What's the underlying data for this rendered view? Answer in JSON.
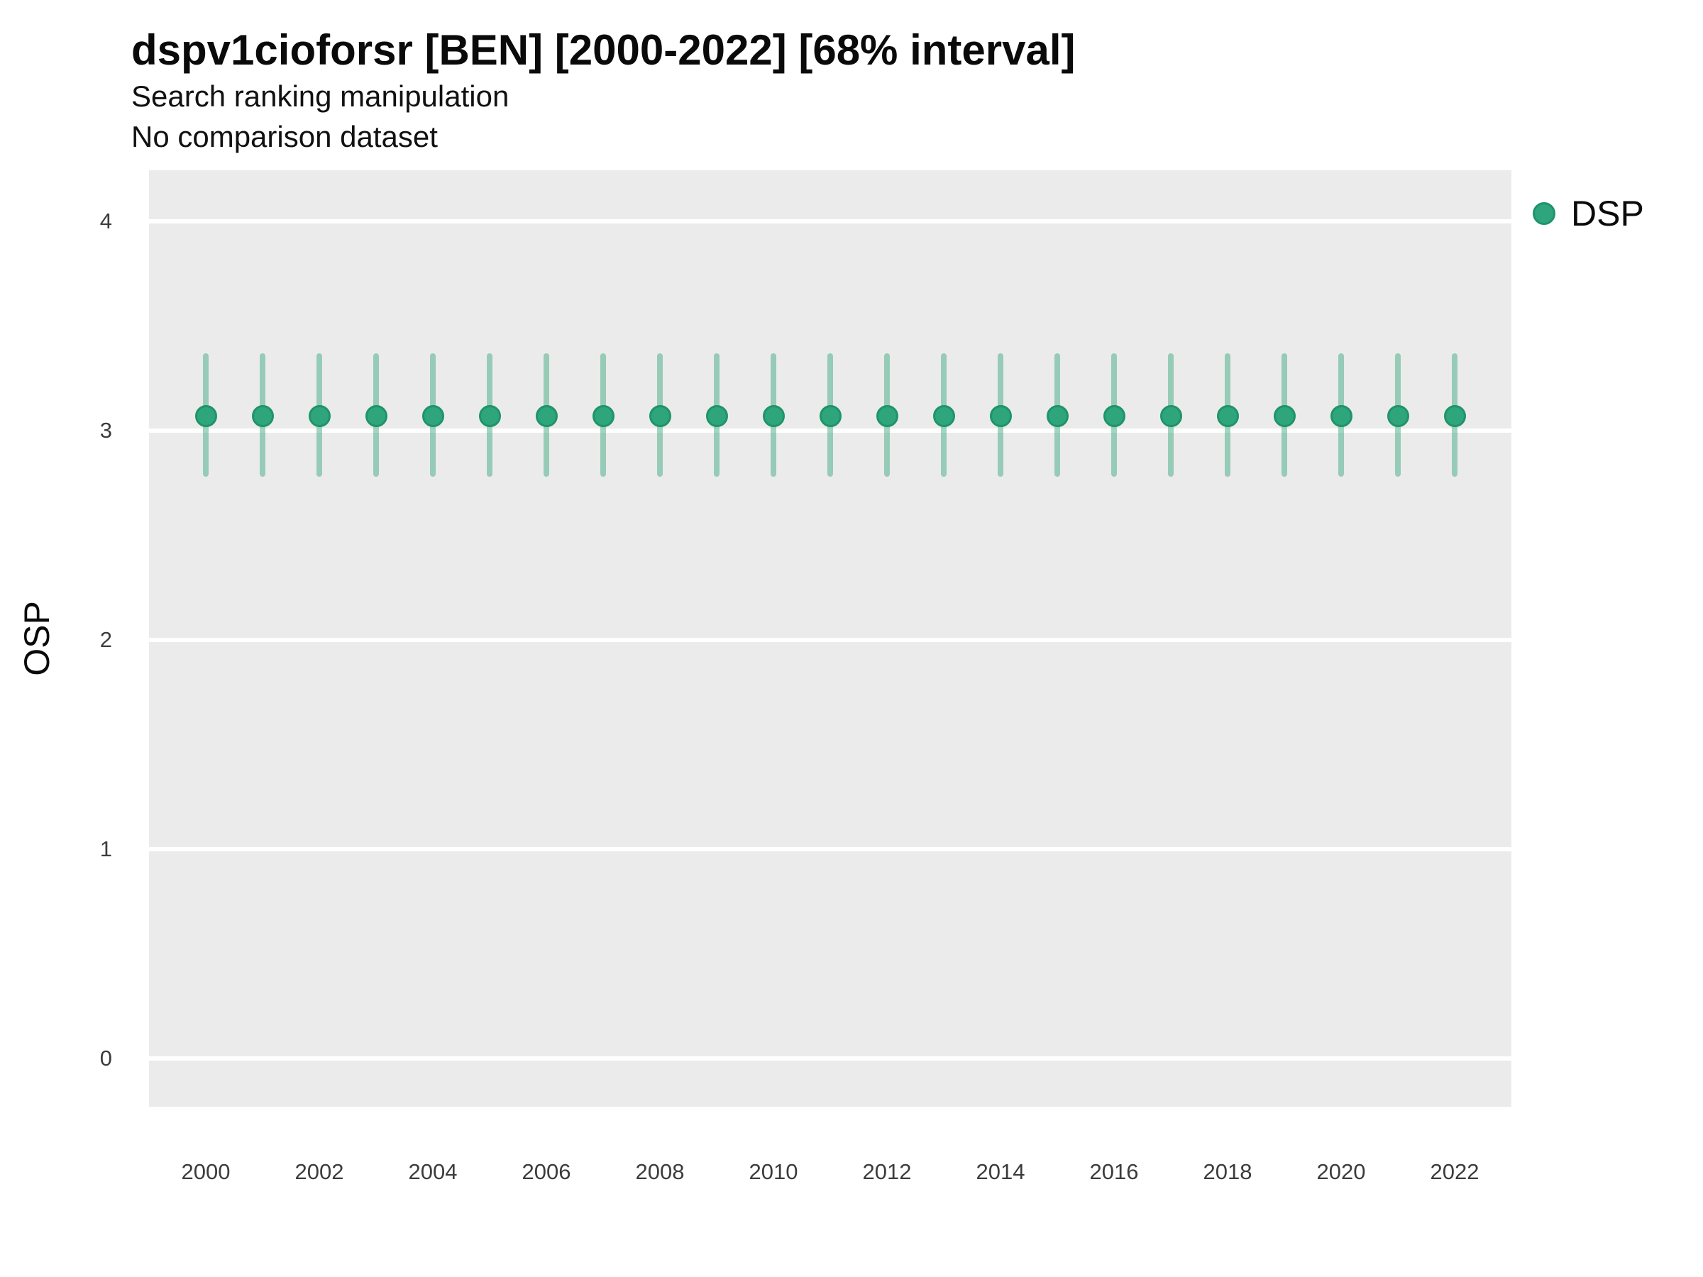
{
  "header": {
    "title": "dspv1cioforsr [BEN] [2000-2022] [68% interval]",
    "subtitle": "Search ranking manipulation",
    "note": "No comparison dataset"
  },
  "colors": {
    "point_fill": "#2ea57c",
    "point_stroke": "#1f9469",
    "interval_fill": "rgba(46, 164, 123, 0.45)",
    "panel_background": "#ebebeb",
    "gridline": "#ffffff"
  },
  "legend": {
    "position": "right-top",
    "items": [
      {
        "label": "DSP",
        "color": "#2ea57c"
      }
    ]
  },
  "chart_data": {
    "type": "scatter",
    "title": "dspv1cioforsr [BEN] [2000-2022] [68% interval]",
    "subtitle": "Search ranking manipulation",
    "note": "No comparison dataset",
    "xlabel": "",
    "ylabel": "OSP",
    "interval": "68%",
    "grid": "major-horizontal-only",
    "legend_position": "right-top",
    "x_domain": [
      1999,
      2023
    ],
    "y_domain": [
      -0.23,
      4.244
    ],
    "x_ticks": [
      2000,
      2002,
      2004,
      2006,
      2008,
      2010,
      2012,
      2014,
      2016,
      2018,
      2020,
      2022
    ],
    "y_ticks": [
      0,
      1,
      2,
      3,
      4
    ],
    "series": [
      {
        "name": "DSP",
        "color": "#2ea57c",
        "points": [
          {
            "x": 2000,
            "y": 3.07,
            "lo": 2.78,
            "hi": 3.37
          },
          {
            "x": 2001,
            "y": 3.07,
            "lo": 2.78,
            "hi": 3.37
          },
          {
            "x": 2002,
            "y": 3.07,
            "lo": 2.78,
            "hi": 3.37
          },
          {
            "x": 2003,
            "y": 3.07,
            "lo": 2.78,
            "hi": 3.37
          },
          {
            "x": 2004,
            "y": 3.07,
            "lo": 2.78,
            "hi": 3.37
          },
          {
            "x": 2005,
            "y": 3.07,
            "lo": 2.78,
            "hi": 3.37
          },
          {
            "x": 2006,
            "y": 3.07,
            "lo": 2.78,
            "hi": 3.37
          },
          {
            "x": 2007,
            "y": 3.07,
            "lo": 2.78,
            "hi": 3.37
          },
          {
            "x": 2008,
            "y": 3.07,
            "lo": 2.78,
            "hi": 3.37
          },
          {
            "x": 2009,
            "y": 3.07,
            "lo": 2.78,
            "hi": 3.37
          },
          {
            "x": 2010,
            "y": 3.07,
            "lo": 2.78,
            "hi": 3.37
          },
          {
            "x": 2011,
            "y": 3.07,
            "lo": 2.78,
            "hi": 3.37
          },
          {
            "x": 2012,
            "y": 3.07,
            "lo": 2.78,
            "hi": 3.37
          },
          {
            "x": 2013,
            "y": 3.07,
            "lo": 2.78,
            "hi": 3.37
          },
          {
            "x": 2014,
            "y": 3.07,
            "lo": 2.78,
            "hi": 3.37
          },
          {
            "x": 2015,
            "y": 3.07,
            "lo": 2.78,
            "hi": 3.37
          },
          {
            "x": 2016,
            "y": 3.07,
            "lo": 2.78,
            "hi": 3.37
          },
          {
            "x": 2017,
            "y": 3.07,
            "lo": 2.78,
            "hi": 3.37
          },
          {
            "x": 2018,
            "y": 3.07,
            "lo": 2.78,
            "hi": 3.37
          },
          {
            "x": 2019,
            "y": 3.07,
            "lo": 2.78,
            "hi": 3.37
          },
          {
            "x": 2020,
            "y": 3.07,
            "lo": 2.78,
            "hi": 3.37
          },
          {
            "x": 2021,
            "y": 3.07,
            "lo": 2.78,
            "hi": 3.37
          },
          {
            "x": 2022,
            "y": 3.07,
            "lo": 2.78,
            "hi": 3.37
          }
        ]
      }
    ]
  }
}
